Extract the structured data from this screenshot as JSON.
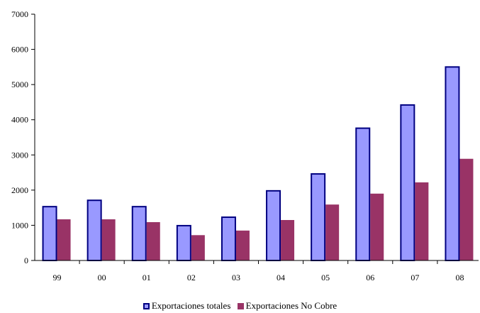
{
  "chart_data": {
    "type": "bar",
    "categories": [
      "99",
      "00",
      "01",
      "02",
      "03",
      "04",
      "05",
      "06",
      "07",
      "08"
    ],
    "series": [
      {
        "name": "Exportaciones totales",
        "color": "#9999ff",
        "border": "#000080",
        "values": [
          1530,
          1710,
          1530,
          990,
          1230,
          1980,
          2460,
          3760,
          4420,
          5500
        ]
      },
      {
        "name": "Exportaciones No Cobre",
        "color": "#993366",
        "values": [
          1170,
          1170,
          1090,
          720,
          850,
          1150,
          1590,
          1900,
          2220,
          2890
        ]
      }
    ],
    "yticks": [
      "0",
      "1000",
      "2000",
      "3000",
      "4000",
      "5000",
      "6000",
      "7000"
    ],
    "ylim": [
      0,
      7000
    ],
    "title": "",
    "xlabel": "",
    "ylabel": "",
    "grid": false,
    "legend_position": "bottom"
  }
}
